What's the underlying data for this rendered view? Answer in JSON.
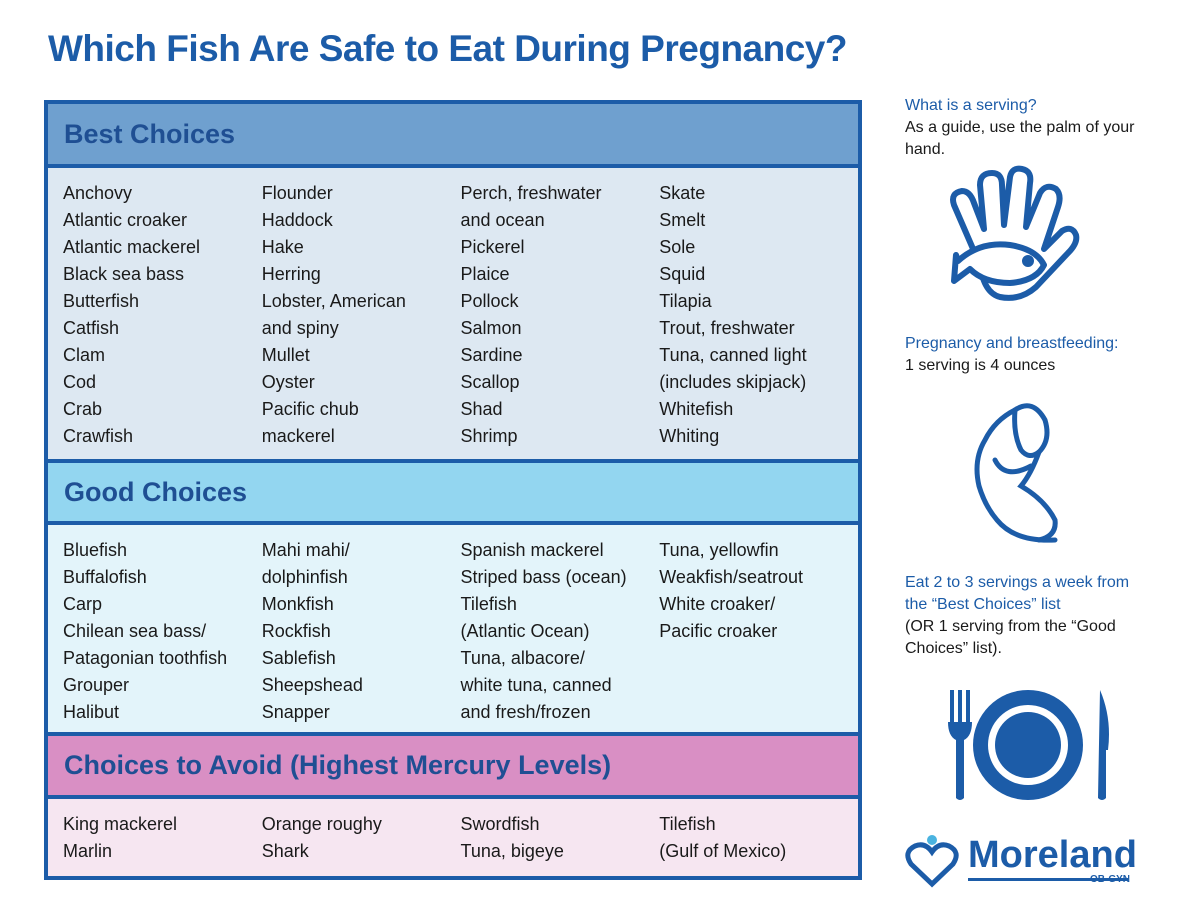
{
  "title": "Which Fish Are Safe to Eat During Pregnancy?",
  "sections": [
    {
      "heading": "Best Choices",
      "columns": [
        [
          "Anchovy",
          "Atlantic croaker",
          "Atlantic mackerel",
          "Black sea bass",
          "Butterfish",
          "Catfish",
          "Clam",
          "Cod",
          "Crab",
          "Crawfish"
        ],
        [
          "Flounder",
          "Haddock",
          "Hake",
          "Herring",
          "Lobster,  American",
          "and spiny",
          "Mullet",
          "Oyster",
          "Pacific chub",
          "mackerel"
        ],
        [
          "Perch, freshwater",
          "and ocean",
          "Pickerel",
          "Plaice",
          "Pollock",
          "Salmon",
          "Sardine",
          "Scallop",
          "Shad",
          "Shrimp"
        ],
        [
          "Skate",
          "Smelt",
          "Sole",
          "Squid",
          "Tilapia",
          "Trout, freshwater",
          "Tuna, canned light",
          "(includes skipjack)",
          "Whitefish",
          "Whiting"
        ]
      ]
    },
    {
      "heading": "Good Choices",
      "columns": [
        [
          "Bluefish",
          "Buffalofish",
          "Carp",
          "Chilean sea bass/",
          "Patagonian toothfish",
          "Grouper",
          "Halibut"
        ],
        [
          "Mahi mahi/",
          "dolphinfish",
          "Monkfish",
          "Rockfish",
          "Sablefish",
          "Sheepshead",
          "Snapper"
        ],
        [
          "Spanish mackerel",
          "Striped bass (ocean)",
          "Tilefish",
          "(Atlantic Ocean)",
          "Tuna, albacore/",
          "white tuna, canned",
          "and fresh/frozen"
        ],
        [
          "Tuna, yellowfin",
          "Weakfish/seatrout",
          "White croaker/",
          "Pacific croaker"
        ]
      ]
    },
    {
      "heading": "Choices to Avoid (Highest Mercury Levels)",
      "columns": [
        [
          "King mackerel",
          "Marlin"
        ],
        [
          "Orange roughy",
          "Shark"
        ],
        [
          "Swordfish",
          "Tuna, bigeye"
        ],
        [
          "Tilefish",
          "(Gulf of Mexico)"
        ]
      ]
    }
  ],
  "sidebar": [
    {
      "heading": "What is a serving?",
      "text": "As a guide, use the palm of your hand."
    },
    {
      "heading": "Pregnancy and breastfeeding:",
      "text": "1 serving is 4 ounces"
    },
    {
      "heading": "Eat 2 to 3 servings a week from the “Best Choices” list",
      "text": "(OR 1 serving from the “Good Choices” list)."
    }
  ],
  "logo": {
    "name": "Moreland",
    "tag": "OB-GYN"
  }
}
